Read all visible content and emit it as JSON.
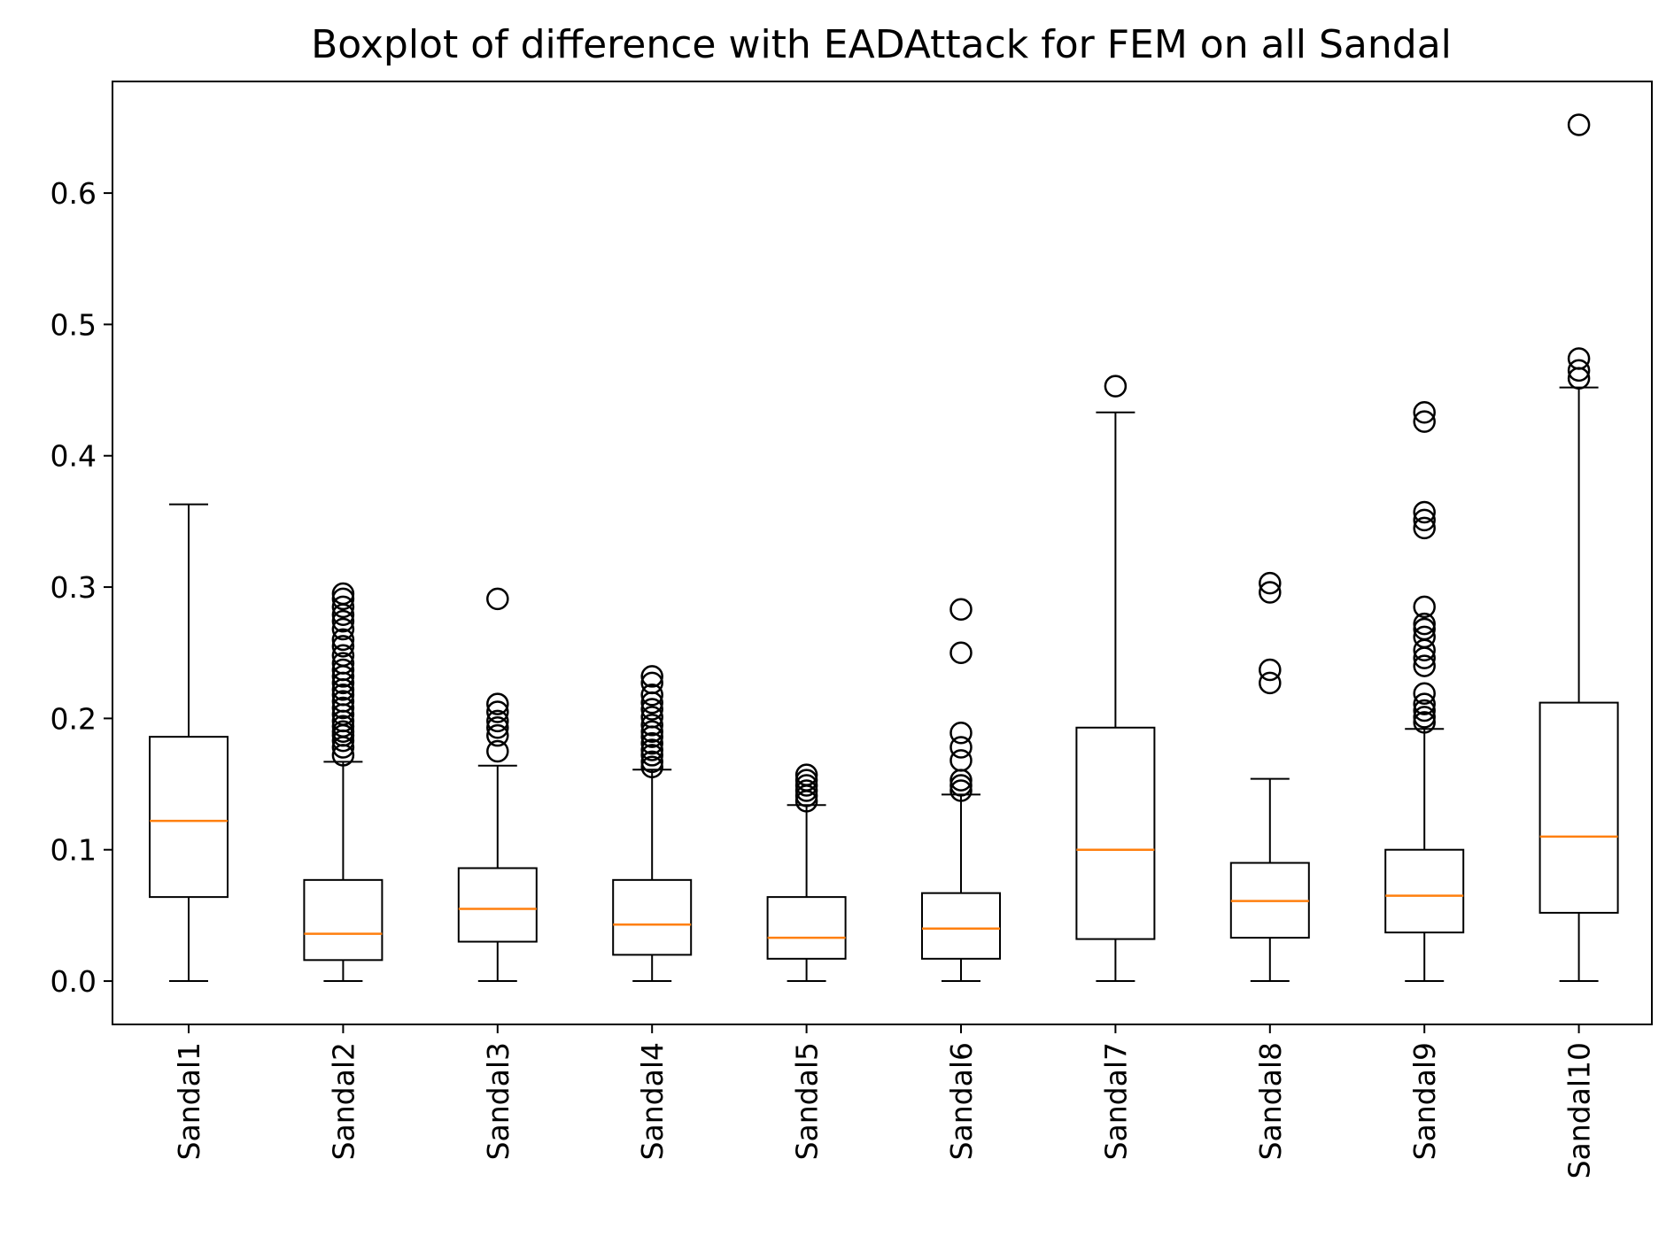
{
  "chart_data": {
    "type": "boxplot",
    "title": "Boxplot of difference with EADAttack for FEM on all Sandal",
    "xlabel": "",
    "ylabel": "",
    "ylim": [
      -0.033,
      0.685
    ],
    "yticks": [
      0.0,
      0.1,
      0.2,
      0.3,
      0.4,
      0.5,
      0.6
    ],
    "ytick_labels": [
      "0.0",
      "0.1",
      "0.2",
      "0.3",
      "0.4",
      "0.5",
      "0.6"
    ],
    "grid": false,
    "legend": null,
    "colors": {
      "box": "#000000",
      "median": "#ff7f0e",
      "outlier": "#000000"
    },
    "categories": [
      "Sandal1",
      "Sandal2",
      "Sandal3",
      "Sandal4",
      "Sandal5",
      "Sandal6",
      "Sandal7",
      "Sandal8",
      "Sandal9",
      "Sandal10"
    ],
    "boxes": [
      {
        "name": "Sandal1",
        "whisker_low": 0.0,
        "q1": 0.064,
        "median": 0.122,
        "q3": 0.186,
        "whisker_high": 0.363,
        "outliers": []
      },
      {
        "name": "Sandal2",
        "whisker_low": 0.0,
        "q1": 0.016,
        "median": 0.036,
        "q3": 0.077,
        "whisker_high": 0.167,
        "outliers": [
          0.172,
          0.178,
          0.183,
          0.187,
          0.19,
          0.194,
          0.198,
          0.203,
          0.208,
          0.213,
          0.218,
          0.222,
          0.227,
          0.232,
          0.237,
          0.242,
          0.248,
          0.255,
          0.26,
          0.268,
          0.274,
          0.279,
          0.285,
          0.291,
          0.295
        ]
      },
      {
        "name": "Sandal3",
        "whisker_low": 0.0,
        "q1": 0.03,
        "median": 0.055,
        "q3": 0.086,
        "whisker_high": 0.164,
        "outliers": [
          0.175,
          0.187,
          0.193,
          0.198,
          0.205,
          0.211,
          0.291
        ]
      },
      {
        "name": "Sandal4",
        "whisker_low": 0.0,
        "q1": 0.02,
        "median": 0.043,
        "q3": 0.077,
        "whisker_high": 0.161,
        "outliers": [
          0.163,
          0.167,
          0.172,
          0.176,
          0.181,
          0.186,
          0.19,
          0.195,
          0.201,
          0.207,
          0.212,
          0.218,
          0.227,
          0.232
        ]
      },
      {
        "name": "Sandal5",
        "whisker_low": 0.0,
        "q1": 0.017,
        "median": 0.033,
        "q3": 0.064,
        "whisker_high": 0.134,
        "outliers": [
          0.137,
          0.141,
          0.145,
          0.149,
          0.153,
          0.157
        ]
      },
      {
        "name": "Sandal6",
        "whisker_low": 0.0,
        "q1": 0.017,
        "median": 0.04,
        "q3": 0.067,
        "whisker_high": 0.142,
        "outliers": [
          0.145,
          0.149,
          0.153,
          0.168,
          0.178,
          0.189,
          0.25,
          0.283
        ]
      },
      {
        "name": "Sandal7",
        "whisker_low": 0.0,
        "q1": 0.032,
        "median": 0.1,
        "q3": 0.193,
        "whisker_high": 0.433,
        "outliers": [
          0.453
        ]
      },
      {
        "name": "Sandal8",
        "whisker_low": 0.0,
        "q1": 0.033,
        "median": 0.061,
        "q3": 0.09,
        "whisker_high": 0.154,
        "outliers": [
          0.227,
          0.237,
          0.296,
          0.303
        ]
      },
      {
        "name": "Sandal9",
        "whisker_low": 0.0,
        "q1": 0.037,
        "median": 0.065,
        "q3": 0.1,
        "whisker_high": 0.192,
        "outliers": [
          0.197,
          0.201,
          0.206,
          0.211,
          0.219,
          0.24,
          0.246,
          0.252,
          0.262,
          0.268,
          0.272,
          0.285,
          0.345,
          0.351,
          0.357,
          0.426,
          0.433
        ]
      },
      {
        "name": "Sandal10",
        "whisker_low": 0.0,
        "q1": 0.052,
        "median": 0.11,
        "q3": 0.212,
        "whisker_high": 0.452,
        "outliers": [
          0.459,
          0.465,
          0.474,
          0.652
        ]
      }
    ]
  }
}
